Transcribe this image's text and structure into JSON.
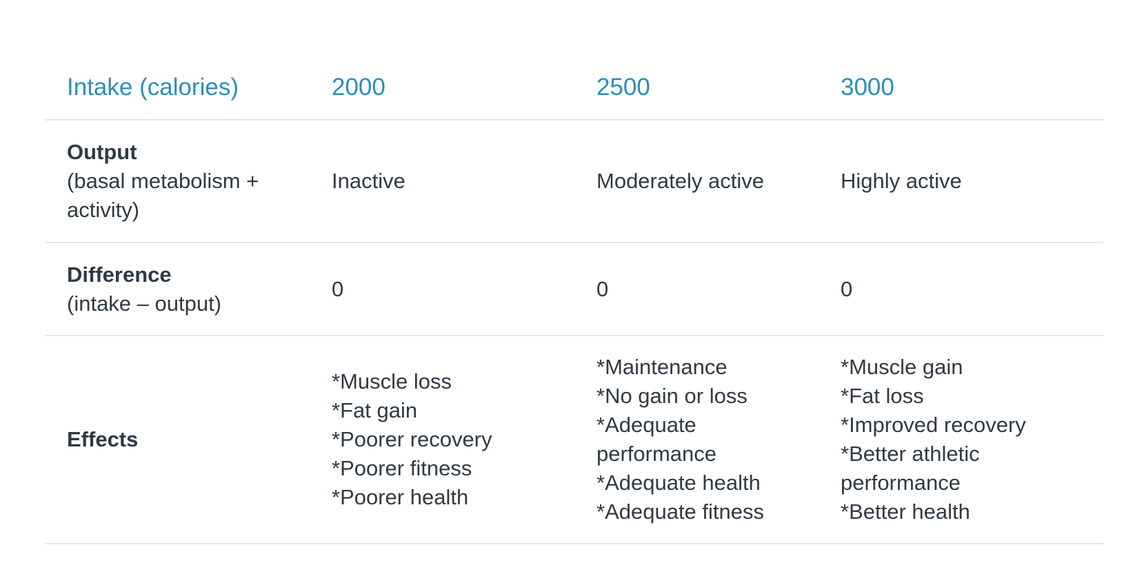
{
  "header": {
    "row_label": "Intake (calories)",
    "columns": [
      "2000",
      "2500",
      "3000"
    ]
  },
  "rows": {
    "output": {
      "label": "Output",
      "sublabel": "(basal metabolism + activity)",
      "values": [
        "Inactive",
        "Moderately active",
        "Highly active"
      ]
    },
    "difference": {
      "label": "Difference",
      "sublabel": "(intake – output)",
      "values": [
        "0",
        "0",
        "0"
      ]
    },
    "effects": {
      "label": "Effects",
      "values": [
        [
          "*Muscle loss",
          "*Fat gain",
          "*Poorer recovery",
          "*Poorer fitness",
          "*Poorer health"
        ],
        [
          "*Maintenance",
          "*No gain or loss",
          "*Adequate performance",
          "*Adequate health",
          "*Adequate fitness"
        ],
        [
          "*Muscle gain",
          "*Fat loss",
          "*Improved recovery",
          "*Better athletic performance",
          "*Better health"
        ]
      ]
    }
  },
  "colors": {
    "header_text": "#2a8fb8",
    "body_text": "#2f3a45",
    "divider": "#e3e6e9"
  }
}
